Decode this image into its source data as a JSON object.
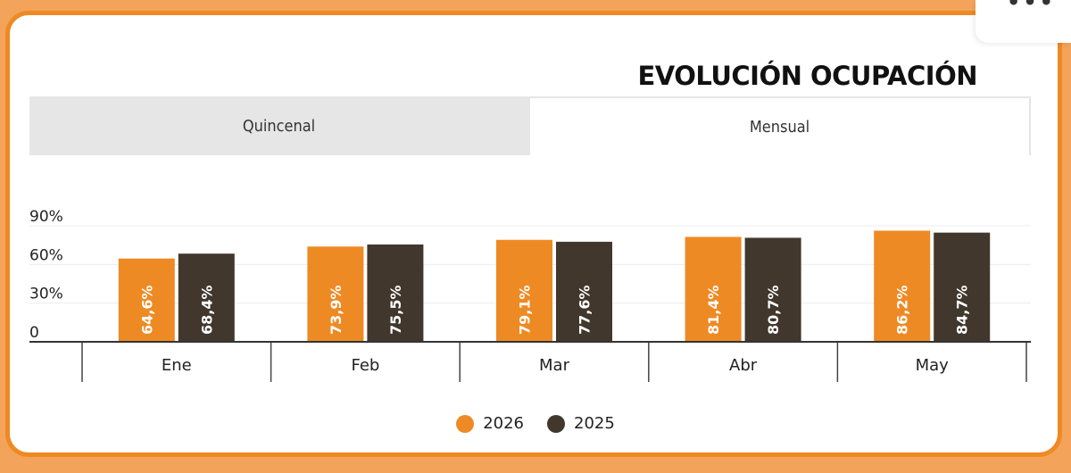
{
  "header": {
    "title": "EVOLUCIÓN OCUPACIÓN",
    "menu_icon": "more-dots-icon"
  },
  "tabs": [
    {
      "label": "Quincenal",
      "active": false
    },
    {
      "label": "Mensual",
      "active": true
    }
  ],
  "colors": {
    "series_2026": "#ee8a24",
    "series_2025": "#41372d",
    "accent_border": "#ee8a24"
  },
  "chart_data": {
    "type": "bar",
    "title": "EVOLUCIÓN OCUPACIÓN",
    "categories": [
      "Ene",
      "Feb",
      "Mar",
      "Abr",
      "May"
    ],
    "yticks": [
      "0",
      "30%",
      "60%",
      "90%"
    ],
    "ylim": [
      0,
      90
    ],
    "grid": true,
    "legend_position": "bottom-center",
    "series": [
      {
        "name": "2026",
        "values": [
          64.6,
          73.9,
          79.1,
          81.4,
          86.2
        ],
        "labels": [
          "64,6%",
          "73,9%",
          "79,1%",
          "81,4%",
          "86,2%"
        ]
      },
      {
        "name": "2025",
        "values": [
          68.4,
          75.5,
          77.6,
          80.7,
          84.7
        ],
        "labels": [
          "68,4%",
          "75,5%",
          "77,6%",
          "80,7%",
          "84,7%"
        ]
      }
    ]
  }
}
